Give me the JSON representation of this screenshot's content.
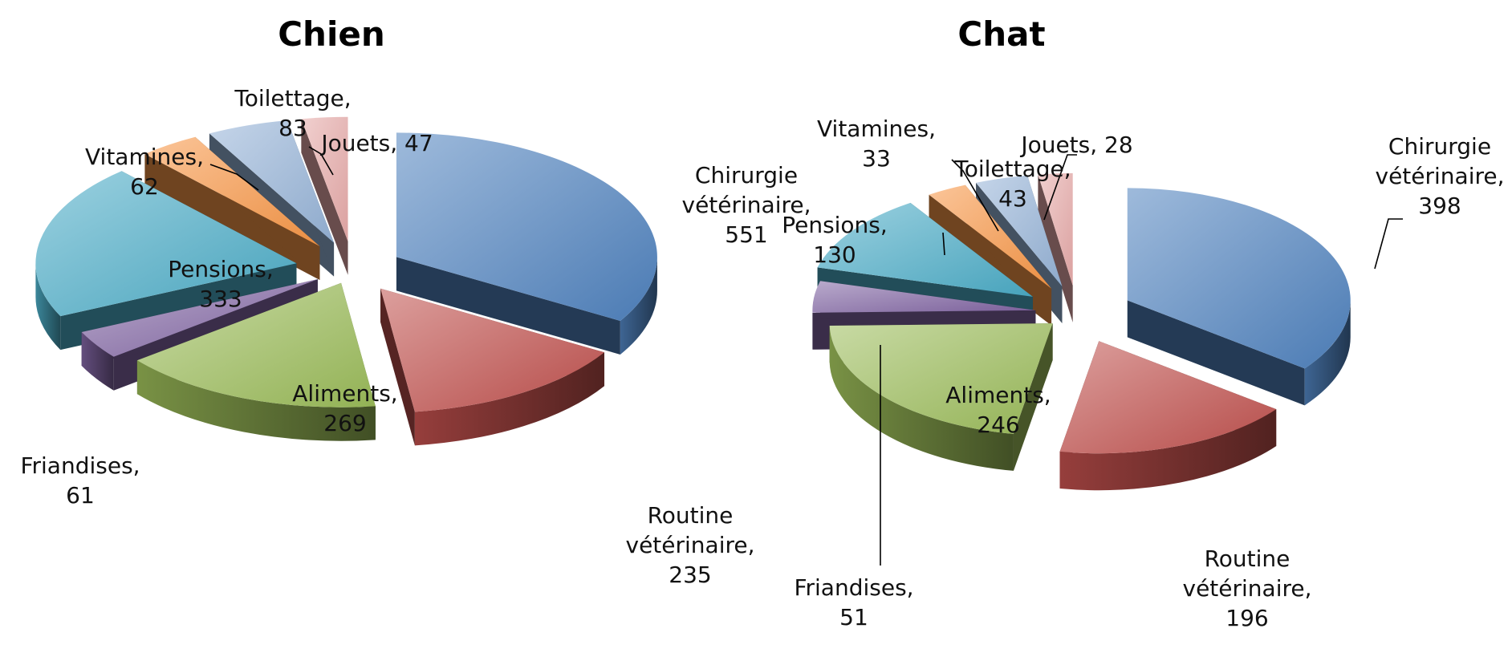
{
  "chart_data": [
    {
      "type": "pie",
      "title": "Chien",
      "slices": [
        {
          "label": "Chirurgie vétérinaire",
          "value": 551,
          "color": "#4f81bd",
          "label_lines": [
            "Chirurgie",
            "vétérinaire,",
            "551"
          ]
        },
        {
          "label": "Routine vétérinaire",
          "value": 235,
          "color": "#c0504d",
          "label_lines": [
            "Routine",
            "vétérinaire,",
            "235"
          ]
        },
        {
          "label": "Aliments",
          "value": 269,
          "color": "#9bbb59",
          "label_lines": [
            "Aliments,",
            "269"
          ]
        },
        {
          "label": "Friandises",
          "value": 61,
          "color": "#8064a2",
          "label_lines": [
            "Friandises,",
            "61"
          ]
        },
        {
          "label": "Pensions",
          "value": 333,
          "color": "#4bacc6",
          "label_lines": [
            "Pensions,",
            "333"
          ]
        },
        {
          "label": "Vitamines",
          "value": 62,
          "color": "#f79646",
          "label_lines": [
            "Vitamines,",
            "62"
          ]
        },
        {
          "label": "Toilettage",
          "value": 83,
          "color": "#95b3d7",
          "label_lines": [
            "Toilettage,",
            "83"
          ]
        },
        {
          "label": "Jouets",
          "value": 47,
          "color": "#e6a9a8",
          "label_lines": [
            "Jouets, 47"
          ]
        }
      ]
    },
    {
      "type": "pie",
      "title": "Chat",
      "slices": [
        {
          "label": "Chirurgie vétérinaire",
          "value": 398,
          "color": "#4f81bd",
          "label_lines": [
            "Chirurgie",
            "vétérinaire,",
            "398"
          ]
        },
        {
          "label": "Routine vétérinaire",
          "value": 196,
          "color": "#c0504d",
          "label_lines": [
            "Routine",
            "vétérinaire,",
            "196"
          ]
        },
        {
          "label": "Aliments",
          "value": 246,
          "color": "#9bbb59",
          "label_lines": [
            "Aliments,",
            "246"
          ]
        },
        {
          "label": "Friandises",
          "value": 51,
          "color": "#8064a2",
          "label_lines": [
            "Friandises,",
            "51"
          ]
        },
        {
          "label": "Pensions",
          "value": 130,
          "color": "#4bacc6",
          "label_lines": [
            "Pensions,",
            "130"
          ]
        },
        {
          "label": "Vitamines",
          "value": 33,
          "color": "#f79646",
          "label_lines": [
            "Vitamines,",
            "33"
          ]
        },
        {
          "label": "Toilettage",
          "value": 43,
          "color": "#95b3d7",
          "label_lines": [
            "Toilettage,",
            "43"
          ]
        },
        {
          "label": "Jouets",
          "value": 28,
          "color": "#e6a9a8",
          "label_lines": [
            "Jouets, 28"
          ]
        }
      ]
    }
  ]
}
